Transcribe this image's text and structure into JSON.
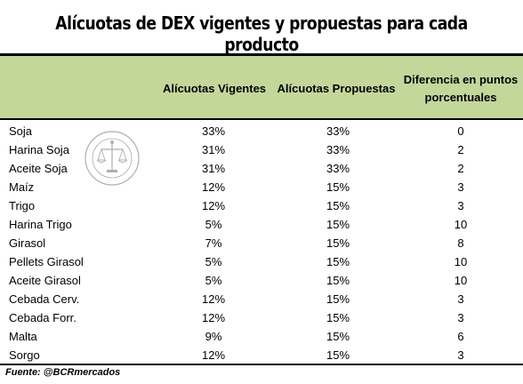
{
  "title": "Alícuotas de DEX vigentes y propuestas para cada producto",
  "columns": {
    "vigentes": "Alícuotas Vigentes",
    "propuestas": "Alícuotas Propuestas",
    "diferencia_line1": "Diferencia en puntos",
    "diferencia_line2": "porcentuales"
  },
  "rows": [
    {
      "producto": "Soja",
      "vigente": "33%",
      "propuesta": "33%",
      "diferencia": "0"
    },
    {
      "producto": "Harina Soja",
      "vigente": "31%",
      "propuesta": "33%",
      "diferencia": "2"
    },
    {
      "producto": "Aceite Soja",
      "vigente": "31%",
      "propuesta": "33%",
      "diferencia": "2"
    },
    {
      "producto": "Maíz",
      "vigente": "12%",
      "propuesta": "15%",
      "diferencia": "3"
    },
    {
      "producto": "Trigo",
      "vigente": "12%",
      "propuesta": "15%",
      "diferencia": "3"
    },
    {
      "producto": "Harina Trigo",
      "vigente": "5%",
      "propuesta": "15%",
      "diferencia": "10"
    },
    {
      "producto": "Girasol",
      "vigente": "7%",
      "propuesta": "15%",
      "diferencia": "8"
    },
    {
      "producto": "Pellets Girasol",
      "vigente": "5%",
      "propuesta": "15%",
      "diferencia": "10"
    },
    {
      "producto": "Aceite Girasol",
      "vigente": "5%",
      "propuesta": "15%",
      "diferencia": "10"
    },
    {
      "producto": "Cebada Cerv.",
      "vigente": "12%",
      "propuesta": "15%",
      "diferencia": "3"
    },
    {
      "producto": "Cebada Forr.",
      "vigente": "12%",
      "propuesta": "15%",
      "diferencia": "3"
    },
    {
      "producto": "Malta",
      "vigente": "9%",
      "propuesta": "15%",
      "diferencia": "6"
    },
    {
      "producto": "Sorgo",
      "vigente": "12%",
      "propuesta": "15%",
      "diferencia": "3"
    }
  ],
  "source": "Fuente: @BCRmercados",
  "watermark": {
    "text": "BOLSA DE COMERCIO DE ROSARIO",
    "icon": "scales-of-justice-seal"
  },
  "colors": {
    "header_band": "#c4d79b",
    "rule": "#000000"
  }
}
